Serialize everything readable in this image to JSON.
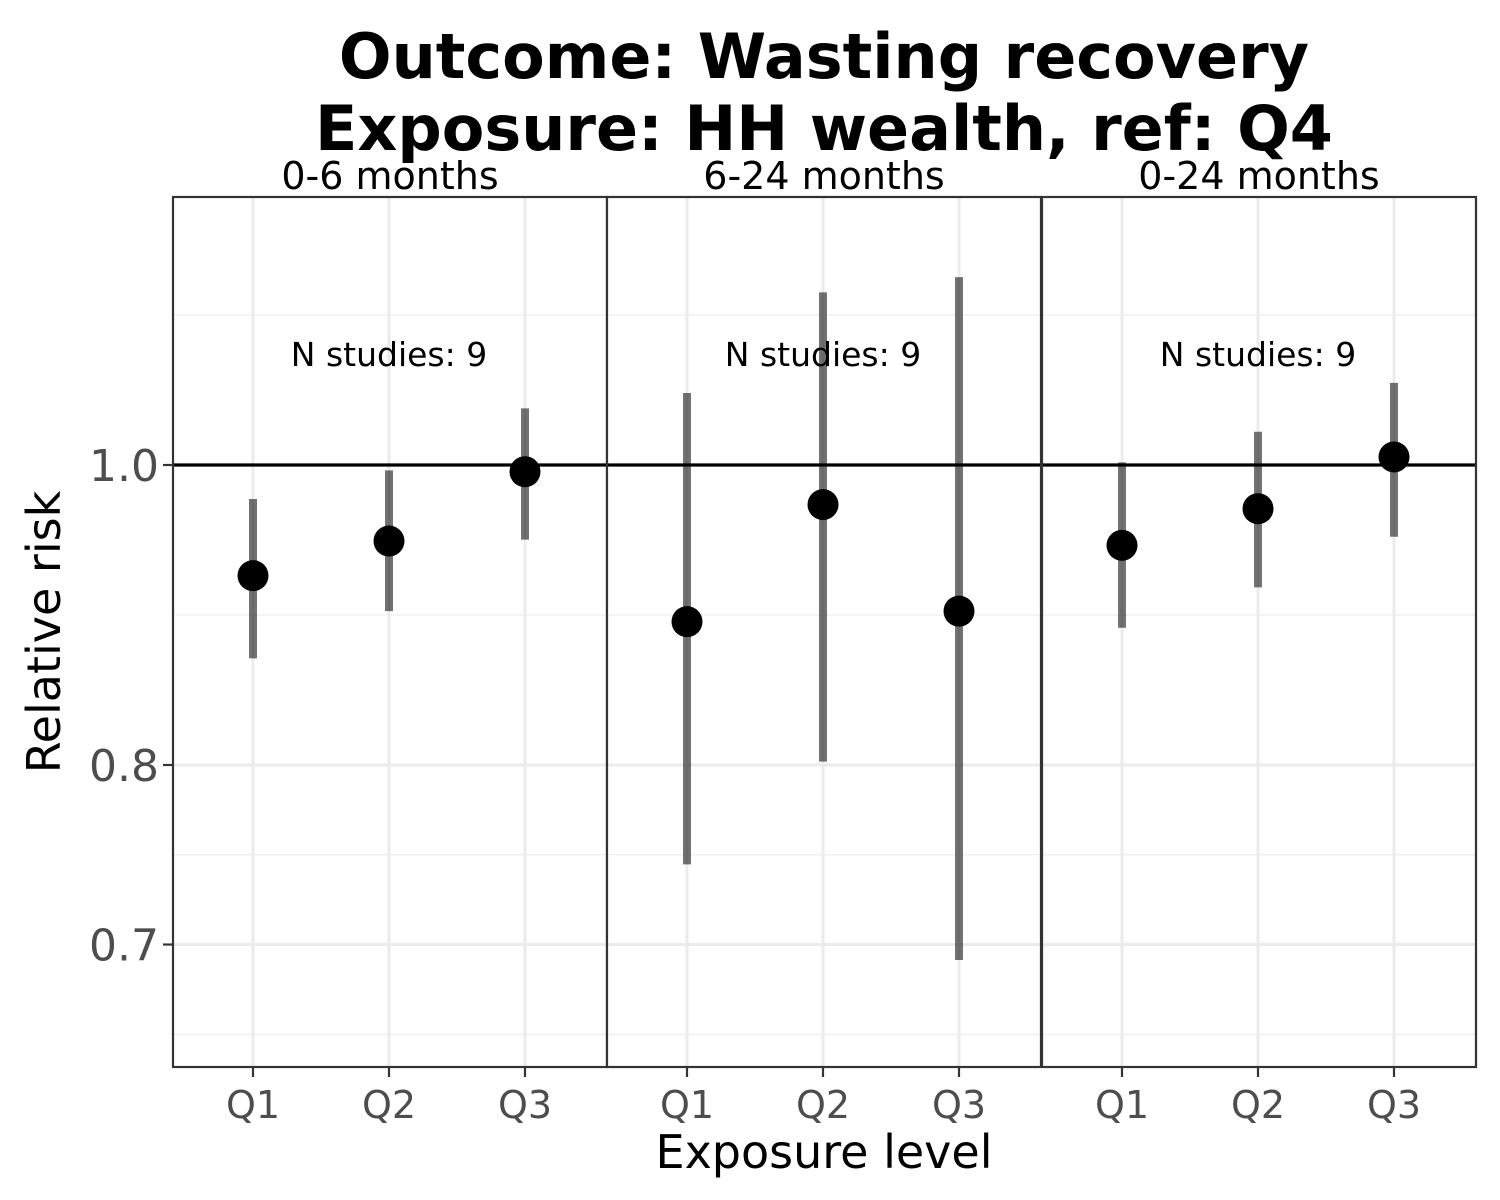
{
  "chart_data": {
    "type": "scatter",
    "title_line1": "Outcome: Wasting recovery",
    "title_line2": "Exposure: HH wealth, ref: Q4",
    "xlabel": "Exposure level",
    "ylabel": "Relative risk",
    "y_scale": "log",
    "ylim": [
      0.665,
      1.15
    ],
    "yticks": [
      {
        "value": 0.7,
        "label": "0.7"
      },
      {
        "value": 0.8,
        "label": "0.8"
      },
      {
        "value": 1.0,
        "label": "1.0"
      }
    ],
    "reference_line": 1.0,
    "grid": true,
    "categories": [
      "Q1",
      "Q2",
      "Q3"
    ],
    "panels": [
      {
        "label": "0-6 months",
        "note": "N studies: 9",
        "points": [
          {
            "category": "Q1",
            "estimate": 0.921,
            "lower": 0.866,
            "upper": 0.975
          },
          {
            "category": "Q2",
            "estimate": 0.945,
            "lower": 0.897,
            "upper": 0.996
          },
          {
            "category": "Q3",
            "estimate": 0.995,
            "lower": 0.946,
            "upper": 1.043
          }
        ]
      },
      {
        "label": "6-24 months",
        "note": "N studies: 9",
        "points": [
          {
            "category": "Q1",
            "estimate": 0.89,
            "lower": 0.743,
            "upper": 1.055
          },
          {
            "category": "Q2",
            "estimate": 0.971,
            "lower": 0.802,
            "upper": 1.137
          },
          {
            "category": "Q3",
            "estimate": 0.897,
            "lower": 0.692,
            "upper": 1.15
          }
        ]
      },
      {
        "label": "0-24 months",
        "note": "N studies: 9",
        "points": [
          {
            "category": "Q1",
            "estimate": 0.942,
            "lower": 0.886,
            "upper": 1.002
          },
          {
            "category": "Q2",
            "estimate": 0.968,
            "lower": 0.913,
            "upper": 1.025
          },
          {
            "category": "Q3",
            "estimate": 1.006,
            "lower": 0.948,
            "upper": 1.063
          }
        ]
      }
    ]
  }
}
